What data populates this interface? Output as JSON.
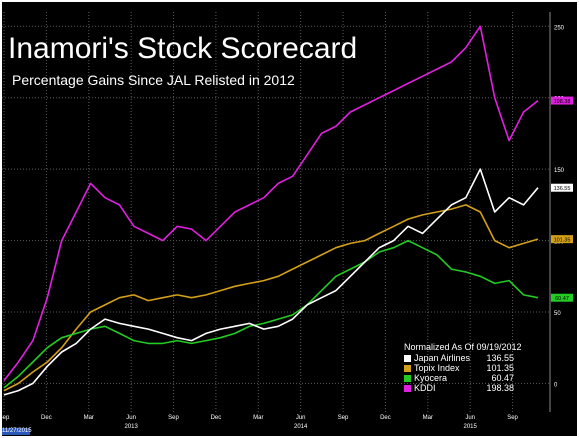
{
  "title": "Inamori's Stock Scorecard",
  "subtitle": "Percentage Gains Since JAL Relisted in 2012",
  "legend_header": "Normalized As Of 09/19/2012",
  "date_badge": "11/27/2015",
  "colors": {
    "background": "#000000",
    "grid": "#5a5a5a",
    "Japan Airlines": "#ffffff",
    "Topix Index": "#d4a017",
    "Kyocera": "#22cc22",
    "KDDI": "#e020e0"
  },
  "chart_data": {
    "type": "line",
    "title": "Inamori's Stock Scorecard",
    "subtitle": "Percentage Gains Since JAL Relisted in 2012",
    "xlabel": "",
    "ylabel": "",
    "ylim": [
      -20,
      260
    ],
    "yticks": [
      0,
      50,
      100,
      150,
      200,
      250
    ],
    "grid": true,
    "legend_position": "bottom-right",
    "x_tick_labels": [
      "Sep",
      "Dec",
      "Mar",
      "Jun",
      "Sep",
      "Dec",
      "Mar",
      "Jun",
      "Sep",
      "Dec",
      "Mar",
      "Jun",
      "Sep"
    ],
    "year_labels": [
      "2013",
      "2014",
      "2015"
    ],
    "x": [
      0,
      1,
      2,
      3,
      4,
      5,
      6,
      7,
      8,
      9,
      10,
      11,
      12,
      13,
      14,
      15,
      16,
      17,
      18,
      19,
      20,
      21,
      22,
      23,
      24,
      25,
      26,
      27,
      28,
      29,
      30,
      31,
      32,
      33,
      34,
      35,
      36,
      37
    ],
    "series": [
      {
        "name": "Japan Airlines",
        "last_value": "136.55",
        "values": [
          -8,
          -5,
          0,
          12,
          22,
          28,
          38,
          45,
          42,
          40,
          38,
          35,
          32,
          30,
          35,
          38,
          40,
          42,
          38,
          40,
          45,
          55,
          60,
          65,
          75,
          85,
          95,
          100,
          110,
          105,
          115,
          125,
          130,
          150,
          120,
          130,
          125,
          137
        ]
      },
      {
        "name": "Topix Index",
        "last_value": "101.35",
        "values": [
          -5,
          0,
          8,
          15,
          25,
          38,
          50,
          55,
          60,
          62,
          58,
          60,
          62,
          60,
          62,
          65,
          68,
          70,
          72,
          75,
          80,
          85,
          90,
          95,
          98,
          100,
          105,
          110,
          115,
          118,
          120,
          122,
          125,
          120,
          100,
          95,
          98,
          101
        ]
      },
      {
        "name": "Kyocera",
        "last_value": "60.47",
        "values": [
          -3,
          5,
          15,
          25,
          32,
          35,
          38,
          40,
          35,
          30,
          28,
          28,
          30,
          28,
          30,
          32,
          35,
          40,
          42,
          45,
          48,
          55,
          65,
          75,
          80,
          85,
          92,
          95,
          100,
          95,
          90,
          80,
          78,
          75,
          70,
          72,
          62,
          60
        ]
      },
      {
        "name": "KDDI",
        "last_value": "198.38",
        "values": [
          2,
          15,
          30,
          60,
          100,
          120,
          140,
          130,
          125,
          110,
          105,
          100,
          110,
          108,
          100,
          110,
          120,
          125,
          130,
          140,
          145,
          160,
          175,
          180,
          190,
          195,
          200,
          205,
          210,
          215,
          220,
          225,
          235,
          250,
          200,
          170,
          190,
          198
        ]
      }
    ]
  }
}
